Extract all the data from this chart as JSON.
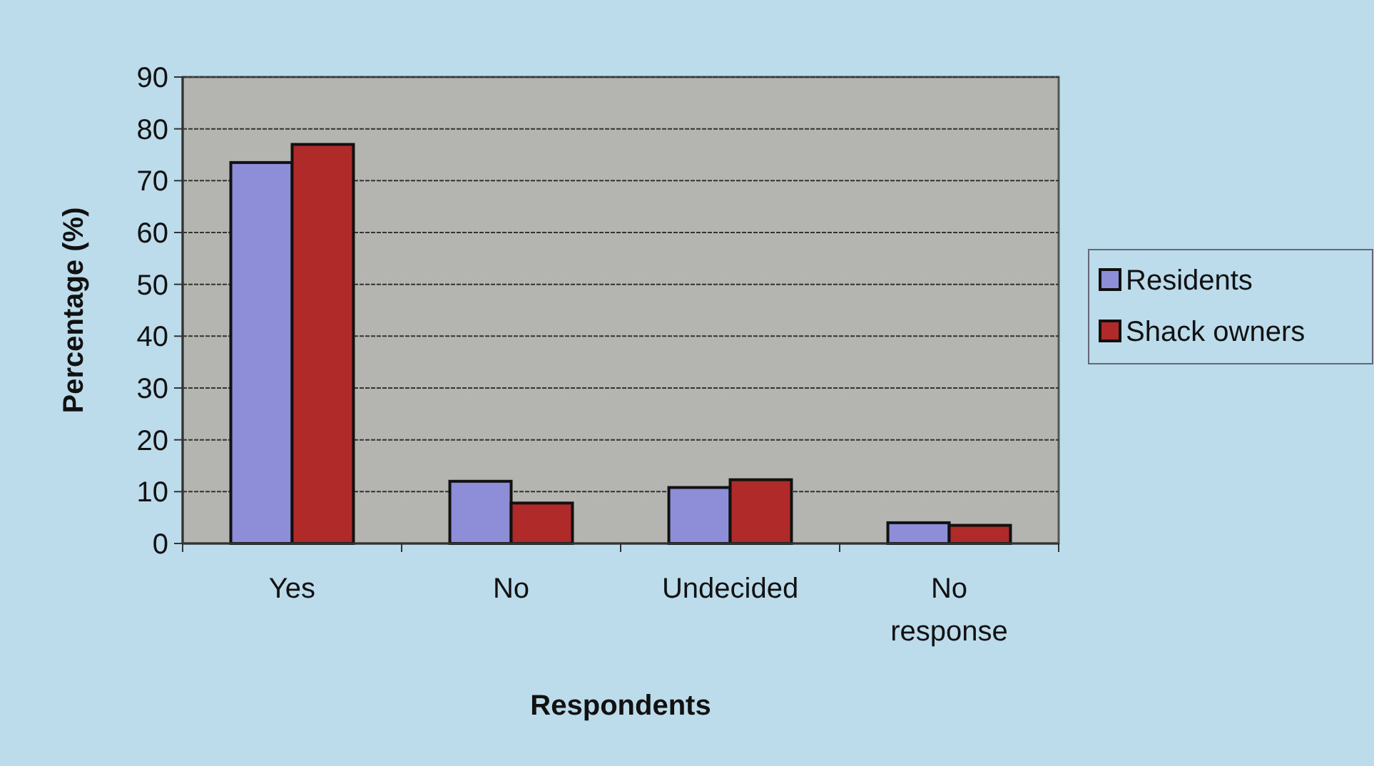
{
  "chart_data": {
    "type": "bar",
    "xlabel": "Respondents",
    "ylabel": "Percentage (%)",
    "categories": [
      "Yes",
      "No",
      "Undecided",
      "No response"
    ],
    "series": [
      {
        "name": "Residents",
        "color": "#8e8ed8",
        "values": [
          73.5,
          12,
          10.8,
          4
        ]
      },
      {
        "name": "Shack owners",
        "color": "#b02a2a",
        "values": [
          77,
          7.8,
          12.3,
          3.5
        ]
      }
    ],
    "ylim": [
      0,
      90
    ],
    "yticks": [
      0,
      10,
      20,
      30,
      40,
      50,
      60,
      70,
      80,
      90
    ],
    "grid": "y",
    "legend": "right"
  }
}
